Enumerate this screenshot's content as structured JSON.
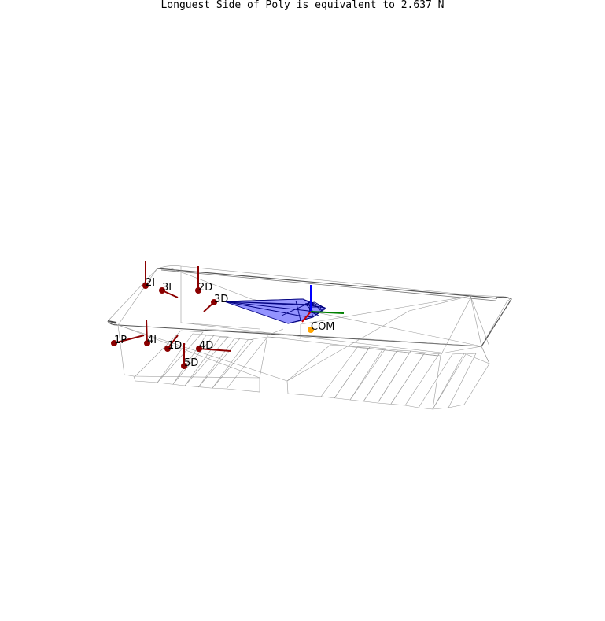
{
  "title": "Longuest Side of Poly is equivalent to 2.637 N",
  "contact_points": [
    {
      "label": "2I"
    },
    {
      "label": "3I"
    },
    {
      "label": "2D"
    },
    {
      "label": "3D"
    },
    {
      "label": "1P"
    },
    {
      "label": "4I"
    },
    {
      "label": "1D"
    },
    {
      "label": "4D"
    },
    {
      "label": "5D"
    }
  ],
  "com": {
    "label": "COM"
  },
  "colors": {
    "contact_point": "#8b0000",
    "force_vector": "#8b0000",
    "com": "#ffa500",
    "polytope_fill": "#8080ff",
    "polytope_edge": "#000080",
    "axis_x": "#cc0000",
    "axis_y": "#008000",
    "axis_z": "#0000ff",
    "wireframe": "#999999"
  }
}
